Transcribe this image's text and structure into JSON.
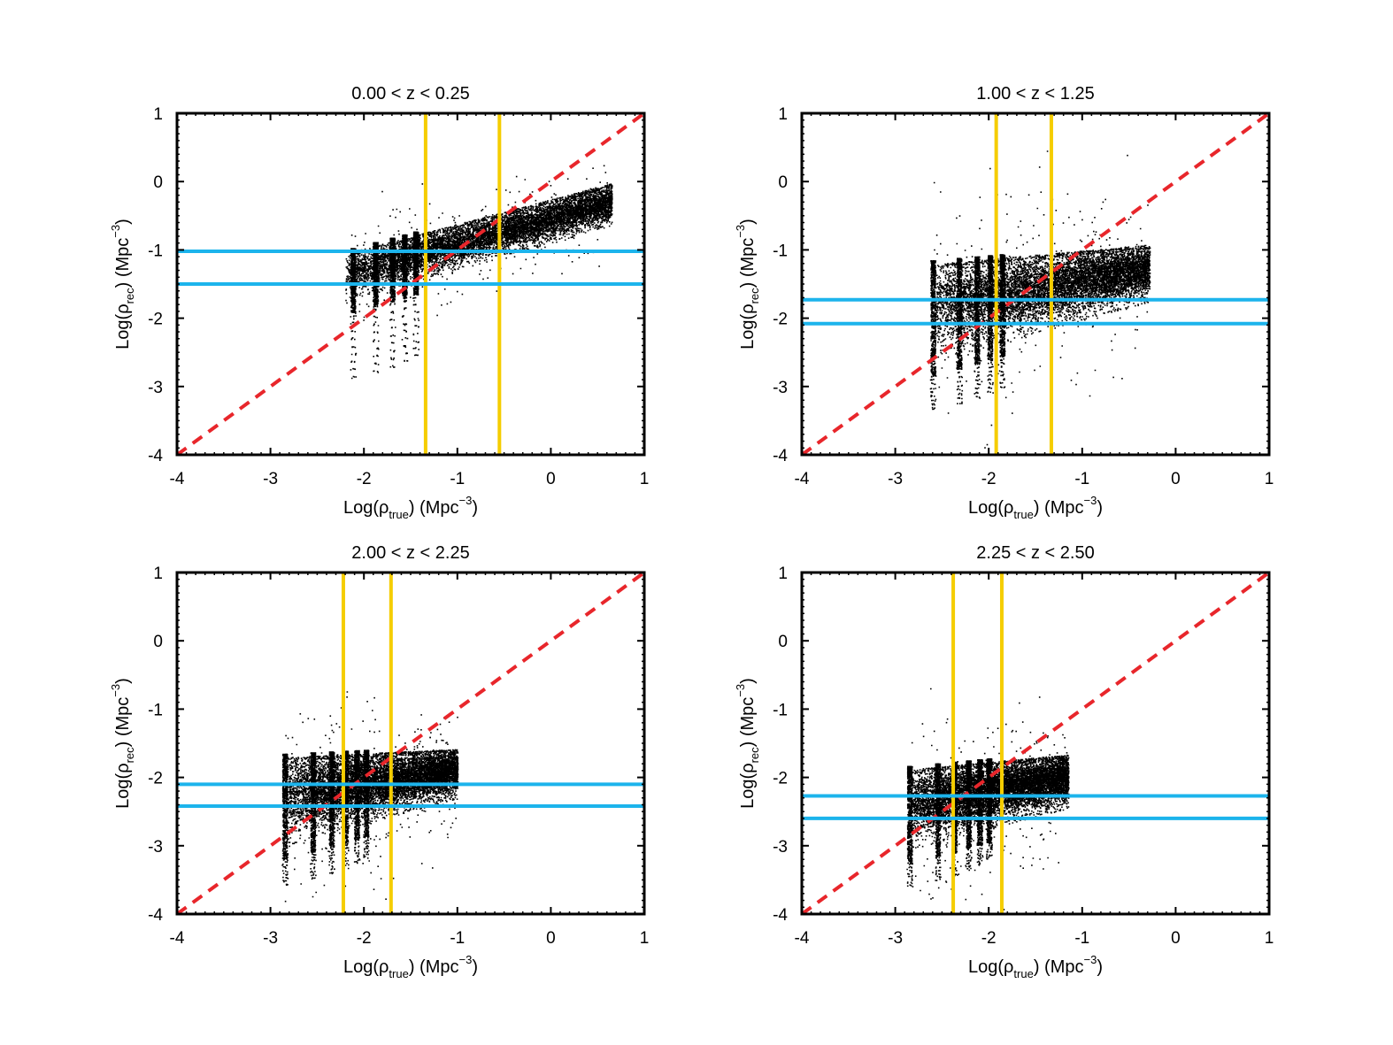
{
  "colors": {
    "identity_line": "#e8262b",
    "vertical_lines": "#f5cd00",
    "horizontal_lines": "#1cb4ec",
    "points": "#000000",
    "frame": "#000000"
  },
  "chart_data": [
    {
      "type": "scatter",
      "title": "0.00 < z < 0.25",
      "xlabel": {
        "base": "Log(ρ",
        "sub": "true",
        "unit": ") (Mpc",
        "sup": "−3",
        "close": ")"
      },
      "ylabel": {
        "base": "Log(ρ",
        "sub": "rec",
        "unit": ") (Mpc",
        "sup": "−3",
        "close": ")"
      },
      "xlim": [
        -4,
        1
      ],
      "ylim": [
        -4,
        1
      ],
      "xticks": [
        "-4",
        "-3",
        "-2",
        "-1",
        "0",
        "1"
      ],
      "yticks": [
        "-4",
        "-3",
        "-2",
        "-1",
        "0",
        "1"
      ],
      "identity_line": {
        "from": [
          -4,
          -4
        ],
        "to": [
          1,
          1
        ],
        "style": "dashed"
      },
      "vertical_lines": [
        -1.34,
        -0.55
      ],
      "horizontal_lines": [
        -1.02,
        -1.5
      ],
      "scatter_cloud": {
        "x_range": [
          -2.2,
          0.65
        ],
        "trend": {
          "slope": 0.47,
          "intercept": -0.3
        },
        "spread": 0.18,
        "upper_envelope": {
          "start_y": -1.05,
          "end_y": -0.02
        },
        "lower_envelope": {
          "start_y": -1.75,
          "end_y": -0.65
        },
        "discrete_columns": [
          -2.12,
          -1.88,
          -1.7,
          -1.57,
          -1.45
        ],
        "extreme_low_y": -2.85
      }
    },
    {
      "type": "scatter",
      "title": "1.00 < z < 1.25",
      "xlabel": {
        "base": "Log(ρ",
        "sub": "true",
        "unit": ") (Mpc",
        "sup": "−3",
        "close": ")"
      },
      "ylabel": {
        "base": "Log(ρ",
        "sub": "rec",
        "unit": ") (Mpc",
        "sup": "−3",
        "close": ")"
      },
      "xlim": [
        -4,
        1
      ],
      "ylim": [
        -4,
        1
      ],
      "xticks": [
        "-4",
        "-3",
        "-2",
        "-1",
        "0",
        "1"
      ],
      "yticks": [
        "-4",
        "-3",
        "-2",
        "-1",
        "0",
        "1"
      ],
      "identity_line": {
        "from": [
          -4,
          -4
        ],
        "to": [
          1,
          1
        ],
        "style": "dashed"
      },
      "vertical_lines": [
        -1.92,
        -1.33
      ],
      "horizontal_lines": [
        -1.73,
        -2.08
      ],
      "scatter_cloud": {
        "x_range": [
          -2.6,
          -0.28
        ],
        "trend": {
          "slope": 0.42,
          "intercept": -1.1
        },
        "spread": 0.2,
        "upper_envelope": {
          "start_y": -1.2,
          "end_y": -0.92
        },
        "lower_envelope": {
          "start_y": -2.65,
          "end_y": -1.75
        },
        "discrete_columns": [
          -2.6,
          -2.32,
          -2.13,
          -1.99,
          -1.86
        ],
        "extreme_low_y": -3.25
      }
    },
    {
      "type": "scatter",
      "title": "2.00 < z < 2.25",
      "xlabel": {
        "base": "Log(ρ",
        "sub": "true",
        "unit": ") (Mpc",
        "sup": "−3",
        "close": ")"
      },
      "ylabel": {
        "base": "Log(ρ",
        "sub": "rec",
        "unit": ") (Mpc",
        "sup": "−3",
        "close": ")"
      },
      "xlim": [
        -4,
        1
      ],
      "ylim": [
        -4,
        1
      ],
      "xticks": [
        "-4",
        "-3",
        "-2",
        "-1",
        "0",
        "1"
      ],
      "yticks": [
        "-4",
        "-3",
        "-2",
        "-1",
        "0",
        "1"
      ],
      "identity_line": {
        "from": [
          -4,
          -4
        ],
        "to": [
          1,
          1
        ],
        "style": "dashed"
      },
      "vertical_lines": [
        -2.22,
        -1.71
      ],
      "horizontal_lines": [
        -2.1,
        -2.42
      ],
      "scatter_cloud": {
        "x_range": [
          -2.85,
          -1.0
        ],
        "trend": {
          "slope": 0.35,
          "intercept": -1.6
        },
        "spread": 0.2,
        "upper_envelope": {
          "start_y": -1.7,
          "end_y": -1.58
        },
        "lower_envelope": {
          "start_y": -3.0,
          "end_y": -2.3
        },
        "discrete_columns": [
          -2.85,
          -2.55,
          -2.35,
          -2.2,
          -2.08,
          -1.98
        ],
        "extreme_low_y": -3.48
      }
    },
    {
      "type": "scatter",
      "title": "2.25 < z < 2.50",
      "xlabel": {
        "base": "Log(ρ",
        "sub": "true",
        "unit": ") (Mpc",
        "sup": "−3",
        "close": ")"
      },
      "ylabel": {
        "base": "Log(ρ",
        "sub": "rec",
        "unit": ") (Mpc",
        "sup": "−3",
        "close": ")"
      },
      "xlim": [
        -4,
        1
      ],
      "ylim": [
        -4,
        1
      ],
      "xticks": [
        "-4",
        "-3",
        "-2",
        "-1",
        "0",
        "1"
      ],
      "yticks": [
        "-4",
        "-3",
        "-2",
        "-1",
        "0",
        "1"
      ],
      "identity_line": {
        "from": [
          -4,
          -4
        ],
        "to": [
          1,
          1
        ],
        "style": "dashed"
      },
      "vertical_lines": [
        -2.38,
        -1.86
      ],
      "horizontal_lines": [
        -2.27,
        -2.6
      ],
      "scatter_cloud": {
        "x_range": [
          -2.85,
          -1.15
        ],
        "trend": {
          "slope": 0.35,
          "intercept": -1.75
        },
        "spread": 0.2,
        "upper_envelope": {
          "start_y": -1.88,
          "end_y": -1.66
        },
        "lower_envelope": {
          "start_y": -3.05,
          "end_y": -2.45
        },
        "discrete_columns": [
          -2.85,
          -2.55,
          -2.37,
          -2.22,
          -2.1,
          -2.0
        ],
        "extreme_low_y": -3.5
      }
    }
  ]
}
